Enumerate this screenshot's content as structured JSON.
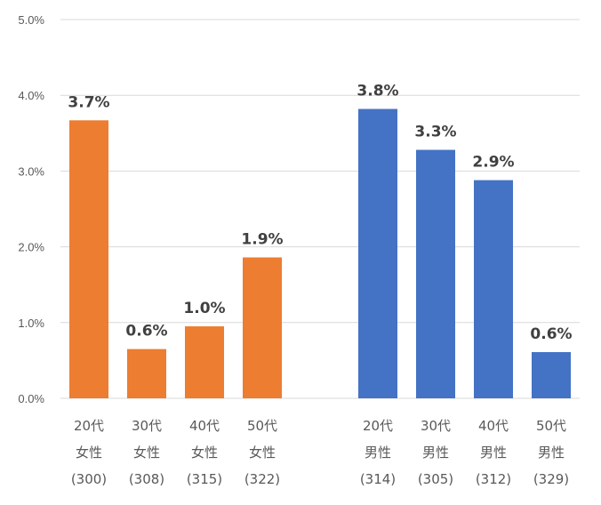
{
  "chart_data": {
    "type": "bar",
    "ylim": [
      0,
      5
    ],
    "y_ticks": [
      "0.0%",
      "1.0%",
      "2.0%",
      "3.0%",
      "4.0%",
      "5.0%"
    ],
    "grid": true,
    "groups": [
      {
        "color": "#ED7D31",
        "bars": [
          {
            "lines": [
              "20代",
              "女性",
              "(300)"
            ],
            "value": 3.67,
            "label": "3.7%"
          },
          {
            "lines": [
              "30代",
              "女性",
              "(308)"
            ],
            "value": 0.65,
            "label": "0.6%"
          },
          {
            "lines": [
              "40代",
              "女性",
              "(315)"
            ],
            "value": 0.95,
            "label": "1.0%"
          },
          {
            "lines": [
              "50代",
              "女性",
              "(322)"
            ],
            "value": 1.86,
            "label": "1.9%"
          }
        ]
      },
      {
        "color": "#4472C4",
        "bars": [
          {
            "lines": [
              "20代",
              "男性",
              "(314)"
            ],
            "value": 3.82,
            "label": "3.8%"
          },
          {
            "lines": [
              "30代",
              "男性",
              "(305)"
            ],
            "value": 3.28,
            "label": "3.3%"
          },
          {
            "lines": [
              "40代",
              "男性",
              "(312)"
            ],
            "value": 2.88,
            "label": "2.9%"
          },
          {
            "lines": [
              "50代",
              "男性",
              "(329)"
            ],
            "value": 0.61,
            "label": "0.6%"
          }
        ]
      }
    ]
  }
}
